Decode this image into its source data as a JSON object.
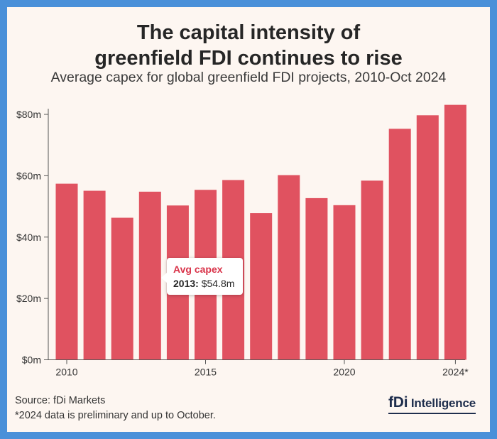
{
  "header": {
    "title_line1": "The capital intensity of",
    "title_line2": "greenfield FDI continues to rise",
    "subtitle": "Average capex for global greenfield FDI projects, 2010-Oct 2024"
  },
  "tooltip": {
    "title": "Avg capex",
    "year": "2013:",
    "value": "$54.8m"
  },
  "footer": {
    "source": "Source: fDi Markets",
    "note": "*2024 data is preliminary and up to October.",
    "logo_mark": "fDi",
    "logo_text": "Intelligence"
  },
  "chart_data": {
    "type": "bar",
    "categories": [
      "2010",
      "2011",
      "2012",
      "2013",
      "2014",
      "2015",
      "2016",
      "2017",
      "2018",
      "2019",
      "2020",
      "2021",
      "2022",
      "2023",
      "2024*"
    ],
    "values": [
      57.4,
      55.1,
      46.3,
      54.8,
      50.3,
      55.4,
      58.6,
      47.8,
      60.2,
      52.7,
      50.4,
      58.4,
      75.3,
      79.7,
      83.1
    ],
    "units": "$m",
    "ylim": [
      0,
      80
    ],
    "yticks": [
      0,
      20,
      40,
      60,
      80
    ],
    "ytick_labels": [
      "$0m",
      "$20m",
      "$40m",
      "$60m",
      "$80m"
    ],
    "xtick_labels": [
      "2010",
      "2015",
      "2020",
      "2024*"
    ],
    "xtick_categories": [
      "2010",
      "2015",
      "2020",
      "2024*"
    ],
    "grid": false,
    "bar_color": "#e05260",
    "highlight_color": "#d9344a"
  }
}
